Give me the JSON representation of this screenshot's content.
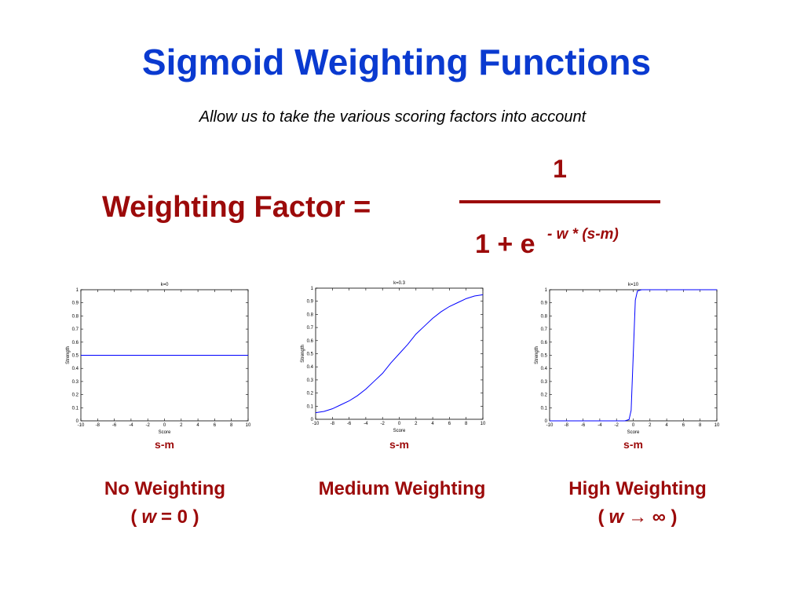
{
  "header": {
    "title": "Sigmoid Weighting Functions",
    "subtitle": "Allow us to take the various scoring factors into account"
  },
  "formula": {
    "lhs": "Weighting Factor =",
    "numerator": "1",
    "denominator": "1 + e",
    "exponent": "- w * (s-m)"
  },
  "panels": [
    {
      "axis_note": "s-m",
      "label": "No Weighting",
      "sublabel": [
        "(",
        "w",
        "= 0 )"
      ]
    },
    {
      "axis_note": "s-m",
      "label": "Medium Weighting"
    },
    {
      "axis_note": "s-m",
      "label": "High Weighting",
      "sublabel": [
        "(",
        "w",
        "→ ∞ )"
      ]
    }
  ],
  "chart_data": [
    {
      "type": "line",
      "title": "k=0",
      "x_label": "Score",
      "y_label": "Strength",
      "color": "#0000ff",
      "x": [
        -10,
        10
      ],
      "values": [
        0.5,
        0.5
      ],
      "xlim": [
        -10,
        10
      ],
      "xticks": [
        -10,
        -8,
        -6,
        -4,
        -2,
        0,
        2,
        4,
        6,
        8,
        10
      ],
      "ylim": [
        0,
        1
      ],
      "yticks": [
        0,
        0.1,
        0.2,
        0.3,
        0.4,
        0.5,
        0.6,
        0.7,
        0.8,
        0.9,
        1
      ]
    },
    {
      "type": "line",
      "title": "k=0.3",
      "x_label": "Score",
      "y_label": "Strength",
      "color": "#0000ff",
      "x": [
        -10,
        -9,
        -8,
        -7,
        -6,
        -5,
        -4,
        -3,
        -2,
        -1,
        0,
        1,
        2,
        3,
        4,
        5,
        6,
        7,
        8,
        9,
        10
      ],
      "values": [
        0.05,
        0.06,
        0.08,
        0.11,
        0.14,
        0.18,
        0.23,
        0.29,
        0.35,
        0.43,
        0.5,
        0.57,
        0.65,
        0.71,
        0.77,
        0.82,
        0.86,
        0.89,
        0.92,
        0.94,
        0.95
      ],
      "xlim": [
        -10,
        10
      ],
      "xticks": [
        -10,
        -8,
        -6,
        -4,
        -2,
        0,
        2,
        4,
        6,
        8,
        10
      ],
      "ylim": [
        0,
        1
      ],
      "yticks": [
        0,
        0.1,
        0.2,
        0.3,
        0.4,
        0.5,
        0.6,
        0.7,
        0.8,
        0.9,
        1
      ]
    },
    {
      "type": "line",
      "title": "k=10",
      "x_label": "Score",
      "y_label": "Strength",
      "color": "#0000ff",
      "x": [
        -10,
        -1,
        -0.5,
        -0.25,
        0,
        0.25,
        0.5,
        1,
        10
      ],
      "values": [
        0,
        0,
        0.01,
        0.08,
        0.5,
        0.92,
        0.99,
        1,
        1
      ],
      "xlim": [
        -10,
        10
      ],
      "xticks": [
        -10,
        -8,
        -6,
        -4,
        -2,
        0,
        2,
        4,
        6,
        8,
        10
      ],
      "ylim": [
        0,
        1
      ],
      "yticks": [
        0,
        0.1,
        0.2,
        0.3,
        0.4,
        0.5,
        0.6,
        0.7,
        0.8,
        0.9,
        1
      ]
    }
  ]
}
